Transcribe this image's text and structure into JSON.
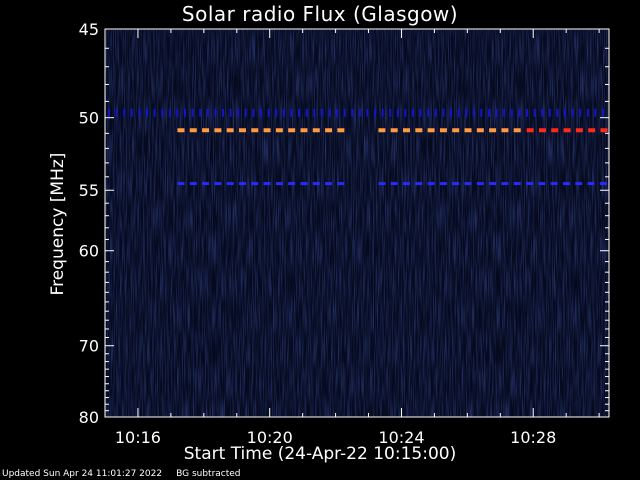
{
  "title": "Solar radio Flux (Glasgow)",
  "footer": {
    "updated": "Updated Sun Apr 24 11:01:27 2022",
    "note": "BG subtracted"
  },
  "colors": {
    "background": "#000000",
    "plot_bg": "#050a1e",
    "axis": "#ffffff",
    "low": "#1414c8",
    "mid": "#2a2aff",
    "high": "#ff9a40",
    "peak": "#ff2a1a"
  },
  "chart_data": {
    "type": "heatmap",
    "title": "Solar radio Flux (Glasgow)",
    "xlabel": "Start Time (24-Apr-22 10:15:00)",
    "ylabel": "Frequency [MHz]",
    "x_unit": "minutes after 10:00",
    "xlim": [
      15.0,
      30.3
    ],
    "ylim": [
      45,
      80
    ],
    "y_scale": "reciprocal",
    "x_ticks": [
      {
        "value": 16,
        "label": "10:16"
      },
      {
        "value": 20,
        "label": "10:20"
      },
      {
        "value": 24,
        "label": "10:24"
      },
      {
        "value": 28,
        "label": "10:28"
      }
    ],
    "y_ticks": [
      {
        "value": 45,
        "label": "45"
      },
      {
        "value": 50,
        "label": "50"
      },
      {
        "value": 55,
        "label": "55"
      },
      {
        "value": 60,
        "label": "60"
      },
      {
        "value": 70,
        "label": "70"
      },
      {
        "value": 80,
        "label": "80"
      }
    ],
    "series": [
      {
        "freq": 49.7,
        "x_start": 15.0,
        "x_end": 30.3,
        "intensity": "low",
        "pattern": "dotted"
      },
      {
        "freq": 50.8,
        "x_start": 17.2,
        "x_end": 22.4,
        "intensity": "high",
        "pattern": "dashed"
      },
      {
        "freq": 50.8,
        "x_start": 23.3,
        "x_end": 27.8,
        "intensity": "high",
        "pattern": "dashed"
      },
      {
        "freq": 50.8,
        "x_start": 27.8,
        "x_end": 30.3,
        "intensity": "peak",
        "pattern": "dashed"
      },
      {
        "freq": 54.5,
        "x_start": 17.2,
        "x_end": 22.4,
        "intensity": "mid",
        "pattern": "dashed"
      },
      {
        "freq": 54.5,
        "x_start": 23.3,
        "x_end": 30.3,
        "intensity": "mid",
        "pattern": "dashed"
      }
    ]
  }
}
